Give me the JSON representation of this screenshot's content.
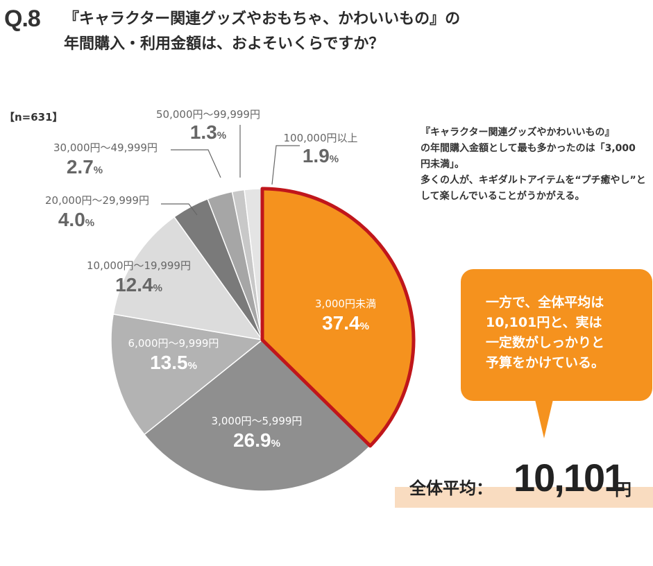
{
  "question": {
    "number": "Q.8",
    "line1": "『キャラクター関連グッズやおもちゃ、かわいいもの』の",
    "line2": "年間購入・利用金額は、およそいくらですか？"
  },
  "sample": "【n=631】",
  "note": {
    "lines": [
      "『キャラクター関連グッズやかわいいもの』",
      "の年間購入金額として最も多かったのは「3,000",
      "円未満」。",
      "多くの人が、キギダルトアイテムを“プチ癒やし”と",
      "して楽しんでいることがうかがえる。"
    ]
  },
  "bubble": {
    "lines": [
      "一方で、全体平均は",
      "10,101円と、実は",
      "一定数がしっかりと",
      "予算をかけている。"
    ]
  },
  "average": {
    "label": "全体平均：",
    "value": "10,101",
    "unit": "円"
  },
  "chart_data": {
    "type": "pie",
    "n": 631,
    "start": "12 o'clock, clockwise",
    "slices": [
      {
        "label": "3,000円未満",
        "value": 37.4,
        "display": "37.4",
        "color": "#f5921e",
        "highlight": true
      },
      {
        "label": "3,000円～5,999円",
        "value": 26.9,
        "display": "26.9",
        "color": "#8f8f8f"
      },
      {
        "label": "6,000円～9,999円",
        "value": 13.5,
        "display": "13.5",
        "color": "#b3b3b3"
      },
      {
        "label": "10,000円～19,999円",
        "value": 12.4,
        "display": "12.4",
        "color": "#dcdcdc"
      },
      {
        "label": "20,000円～29,999円",
        "value": 4.0,
        "display": "4.0",
        "color": "#7a7a7a"
      },
      {
        "label": "30,000円～49,999円",
        "value": 2.7,
        "display": "2.7",
        "color": "#a6a6a6"
      },
      {
        "label": "50,000円～99,999円",
        "value": 1.3,
        "display": "1.3",
        "color": "#c8c8c8"
      },
      {
        "label": "100,000円以上",
        "value": 1.9,
        "display": "1.9",
        "color": "#e4e4e4"
      }
    ],
    "percent_suffix": "%"
  }
}
